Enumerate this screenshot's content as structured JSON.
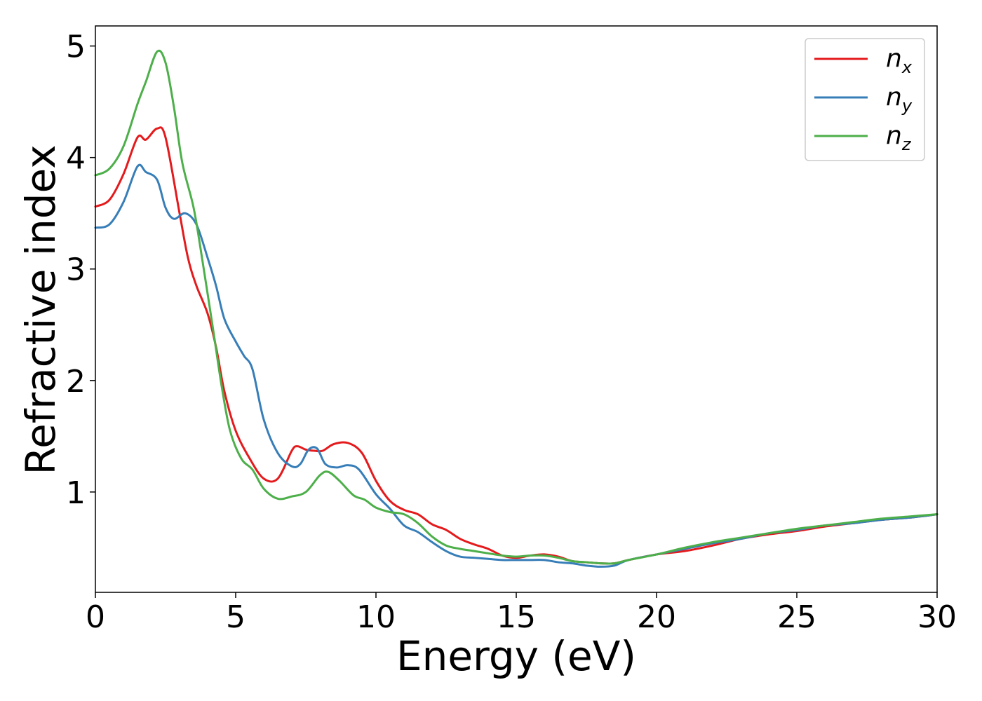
{
  "chart_data": {
    "type": "line",
    "xlabel": "Energy (eV)",
    "ylabel": "Refractive index",
    "xlim": [
      0,
      30
    ],
    "ylim": [
      0.1,
      5.18
    ],
    "xticks": [
      "0",
      "5",
      "10",
      "15",
      "20",
      "25",
      "30"
    ],
    "yticks": [
      "1",
      "2",
      "3",
      "4",
      "5"
    ],
    "grid": false,
    "legend_position": "top-right",
    "series": [
      {
        "name": "n_x",
        "base": "n",
        "sub": "x",
        "color": "#e41a1c",
        "points": [
          [
            0,
            3.56
          ],
          [
            0.5,
            3.62
          ],
          [
            1.0,
            3.85
          ],
          [
            1.5,
            4.18
          ],
          [
            1.8,
            4.16
          ],
          [
            2.2,
            4.26
          ],
          [
            2.5,
            4.18
          ],
          [
            3.0,
            3.5
          ],
          [
            3.3,
            3.1
          ],
          [
            3.6,
            2.85
          ],
          [
            4.0,
            2.6
          ],
          [
            4.3,
            2.3
          ],
          [
            4.6,
            1.9
          ],
          [
            5.0,
            1.55
          ],
          [
            5.5,
            1.3
          ],
          [
            6.0,
            1.12
          ],
          [
            6.5,
            1.12
          ],
          [
            7.0,
            1.37
          ],
          [
            7.2,
            1.41
          ],
          [
            7.5,
            1.38
          ],
          [
            7.8,
            1.37
          ],
          [
            8.1,
            1.37
          ],
          [
            8.5,
            1.43
          ],
          [
            9.0,
            1.44
          ],
          [
            9.5,
            1.35
          ],
          [
            10.0,
            1.1
          ],
          [
            10.5,
            0.92
          ],
          [
            11.0,
            0.84
          ],
          [
            11.5,
            0.8
          ],
          [
            12.0,
            0.71
          ],
          [
            12.5,
            0.66
          ],
          [
            13.0,
            0.58
          ],
          [
            13.5,
            0.53
          ],
          [
            14.0,
            0.49
          ],
          [
            14.5,
            0.43
          ],
          [
            15.0,
            0.41
          ],
          [
            15.5,
            0.43
          ],
          [
            16.0,
            0.44
          ],
          [
            16.5,
            0.42
          ],
          [
            17.0,
            0.38
          ],
          [
            17.5,
            0.37
          ],
          [
            18.0,
            0.36
          ],
          [
            18.5,
            0.36
          ],
          [
            19.0,
            0.39
          ],
          [
            20.0,
            0.44
          ],
          [
            21.0,
            0.47
          ],
          [
            22.0,
            0.52
          ],
          [
            23.0,
            0.58
          ],
          [
            24.0,
            0.62
          ],
          [
            25.0,
            0.65
          ],
          [
            26.0,
            0.69
          ],
          [
            27.0,
            0.72
          ],
          [
            28.0,
            0.75
          ],
          [
            29.0,
            0.77
          ],
          [
            30.0,
            0.8
          ]
        ]
      },
      {
        "name": "n_y",
        "base": "n",
        "sub": "y",
        "color": "#377eb8",
        "points": [
          [
            0,
            3.37
          ],
          [
            0.5,
            3.4
          ],
          [
            1.0,
            3.6
          ],
          [
            1.5,
            3.92
          ],
          [
            1.8,
            3.87
          ],
          [
            2.2,
            3.8
          ],
          [
            2.5,
            3.55
          ],
          [
            2.8,
            3.45
          ],
          [
            3.2,
            3.5
          ],
          [
            3.6,
            3.4
          ],
          [
            4.0,
            3.1
          ],
          [
            4.3,
            2.85
          ],
          [
            4.6,
            2.55
          ],
          [
            5.0,
            2.35
          ],
          [
            5.3,
            2.22
          ],
          [
            5.6,
            2.1
          ],
          [
            6.0,
            1.65
          ],
          [
            6.5,
            1.35
          ],
          [
            7.0,
            1.23
          ],
          [
            7.3,
            1.25
          ],
          [
            7.6,
            1.38
          ],
          [
            7.9,
            1.39
          ],
          [
            8.2,
            1.25
          ],
          [
            8.6,
            1.22
          ],
          [
            9.0,
            1.24
          ],
          [
            9.4,
            1.2
          ],
          [
            10.0,
            0.98
          ],
          [
            10.5,
            0.85
          ],
          [
            11.0,
            0.7
          ],
          [
            11.5,
            0.64
          ],
          [
            12.0,
            0.55
          ],
          [
            12.5,
            0.47
          ],
          [
            13.0,
            0.42
          ],
          [
            13.5,
            0.41
          ],
          [
            14.0,
            0.4
          ],
          [
            14.5,
            0.39
          ],
          [
            15.0,
            0.39
          ],
          [
            15.5,
            0.39
          ],
          [
            16.0,
            0.39
          ],
          [
            16.5,
            0.37
          ],
          [
            17.0,
            0.36
          ],
          [
            17.5,
            0.34
          ],
          [
            18.0,
            0.33
          ],
          [
            18.5,
            0.34
          ],
          [
            19.0,
            0.39
          ],
          [
            20.0,
            0.44
          ],
          [
            21.0,
            0.49
          ],
          [
            22.0,
            0.54
          ],
          [
            23.0,
            0.58
          ],
          [
            24.0,
            0.63
          ],
          [
            25.0,
            0.66
          ],
          [
            26.0,
            0.7
          ],
          [
            27.0,
            0.72
          ],
          [
            28.0,
            0.75
          ],
          [
            29.0,
            0.77
          ],
          [
            30.0,
            0.8
          ]
        ]
      },
      {
        "name": "n_z",
        "base": "n",
        "sub": "z",
        "color": "#4daf4a",
        "points": [
          [
            0,
            3.84
          ],
          [
            0.5,
            3.9
          ],
          [
            1.0,
            4.1
          ],
          [
            1.5,
            4.48
          ],
          [
            1.8,
            4.68
          ],
          [
            2.2,
            4.95
          ],
          [
            2.5,
            4.85
          ],
          [
            2.8,
            4.45
          ],
          [
            3.1,
            3.95
          ],
          [
            3.5,
            3.55
          ],
          [
            3.8,
            3.1
          ],
          [
            4.2,
            2.45
          ],
          [
            4.5,
            1.95
          ],
          [
            4.8,
            1.55
          ],
          [
            5.2,
            1.3
          ],
          [
            5.6,
            1.2
          ],
          [
            6.0,
            1.03
          ],
          [
            6.5,
            0.94
          ],
          [
            7.0,
            0.96
          ],
          [
            7.5,
            1.0
          ],
          [
            8.0,
            1.15
          ],
          [
            8.3,
            1.18
          ],
          [
            8.7,
            1.1
          ],
          [
            9.2,
            0.97
          ],
          [
            9.6,
            0.93
          ],
          [
            10.0,
            0.86
          ],
          [
            10.5,
            0.82
          ],
          [
            11.0,
            0.8
          ],
          [
            11.5,
            0.72
          ],
          [
            12.0,
            0.6
          ],
          [
            12.5,
            0.52
          ],
          [
            13.0,
            0.49
          ],
          [
            13.5,
            0.47
          ],
          [
            14.0,
            0.45
          ],
          [
            14.5,
            0.43
          ],
          [
            15.0,
            0.42
          ],
          [
            15.5,
            0.43
          ],
          [
            16.0,
            0.43
          ],
          [
            16.5,
            0.41
          ],
          [
            17.0,
            0.38
          ],
          [
            17.5,
            0.37
          ],
          [
            18.0,
            0.36
          ],
          [
            18.5,
            0.36
          ],
          [
            19.0,
            0.39
          ],
          [
            20.0,
            0.44
          ],
          [
            21.0,
            0.5
          ],
          [
            22.0,
            0.55
          ],
          [
            23.0,
            0.59
          ],
          [
            24.0,
            0.63
          ],
          [
            25.0,
            0.67
          ],
          [
            26.0,
            0.7
          ],
          [
            27.0,
            0.73
          ],
          [
            28.0,
            0.76
          ],
          [
            29.0,
            0.78
          ],
          [
            30.0,
            0.8
          ]
        ]
      }
    ]
  }
}
